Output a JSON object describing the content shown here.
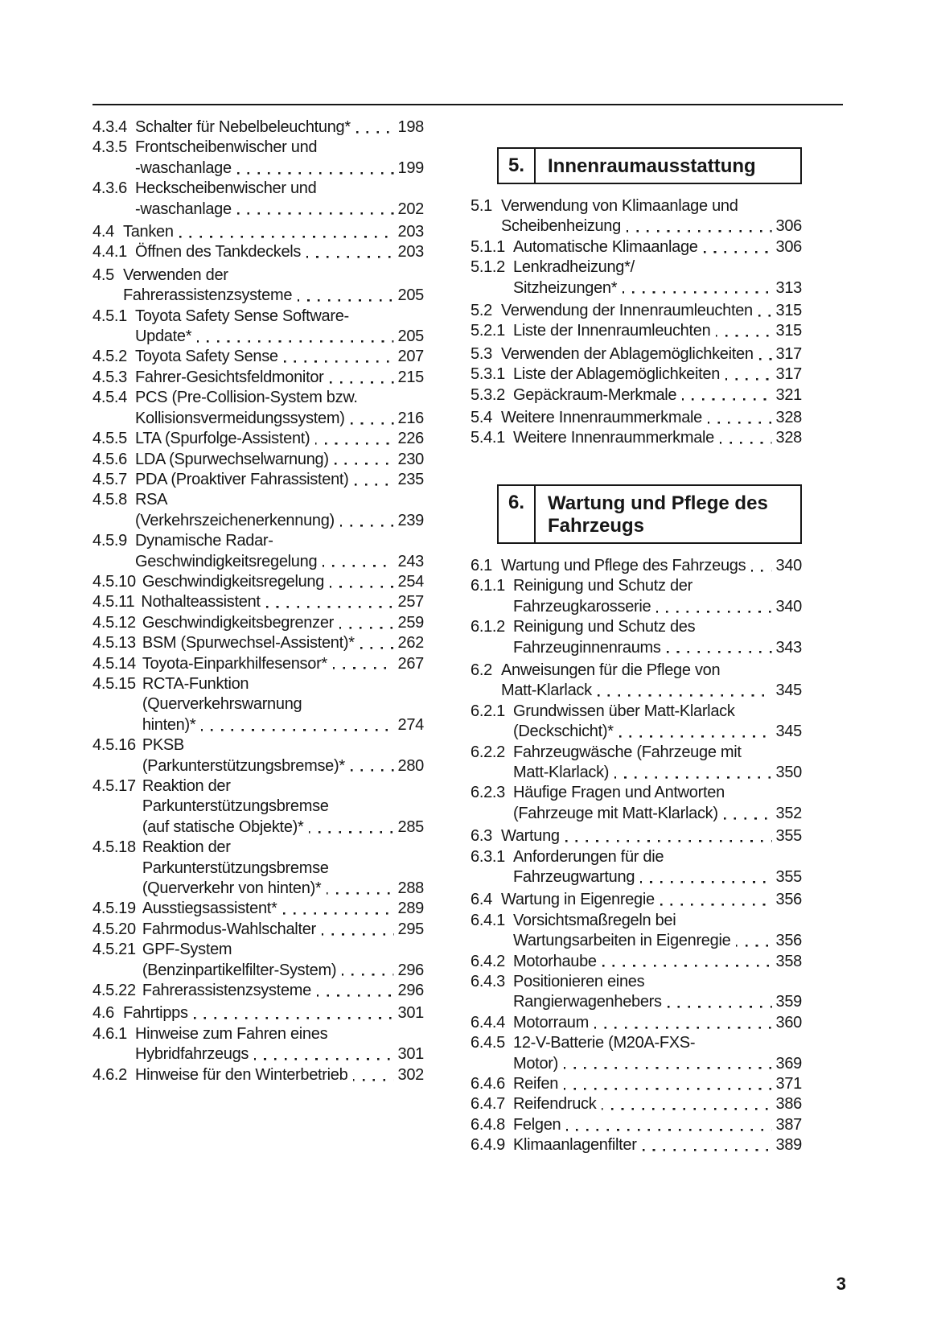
{
  "document": {
    "ink_color": "#161616",
    "footer_page_number": "3"
  },
  "left_column": {
    "entries": [
      {
        "level": 3,
        "num": "4.3.4",
        "lines": [
          "Schalter für Nebelbeleuchtung*"
        ],
        "page": "198"
      },
      {
        "level": 3,
        "num": "4.3.5",
        "lines": [
          "Frontscheibenwischer und",
          "-waschanlage"
        ],
        "page": "199"
      },
      {
        "level": 3,
        "num": "4.3.6",
        "lines": [
          "Heckscheibenwischer und",
          "-waschanlage"
        ],
        "page": "202"
      },
      {
        "level": 2,
        "num": "4.4",
        "lines": [
          "Tanken"
        ],
        "page": "203"
      },
      {
        "level": 3,
        "num": "4.4.1",
        "lines": [
          "Öffnen des Tankdeckels"
        ],
        "page": "203"
      },
      {
        "level": 2,
        "num": "4.5",
        "lines": [
          "Verwenden der",
          "Fahrerassistenzsysteme"
        ],
        "page": "205"
      },
      {
        "level": 3,
        "num": "4.5.1",
        "lines": [
          "Toyota Safety Sense Software-",
          "Update*"
        ],
        "page": "205"
      },
      {
        "level": 3,
        "num": "4.5.2",
        "lines": [
          "Toyota Safety Sense"
        ],
        "page": "207"
      },
      {
        "level": 3,
        "num": "4.5.3",
        "lines": [
          "Fahrer-Gesichtsfeldmonitor"
        ],
        "page": "215"
      },
      {
        "level": 3,
        "num": "4.5.4",
        "lines": [
          "PCS (Pre-Collision-System bzw.",
          "Kollisionsvermeidungssystem)"
        ],
        "page": "216"
      },
      {
        "level": 3,
        "num": "4.5.5",
        "lines": [
          "LTA (Spurfolge-Assistent)"
        ],
        "page": "226"
      },
      {
        "level": 3,
        "num": "4.5.6",
        "lines": [
          "LDA (Spurwechselwarnung)"
        ],
        "page": "230"
      },
      {
        "level": 3,
        "num": "4.5.7",
        "lines": [
          "PDA (Proaktiver Fahrassistent)"
        ],
        "page": "235"
      },
      {
        "level": 3,
        "num": "4.5.8",
        "lines": [
          "RSA",
          "(Verkehrszeichenerkennung)"
        ],
        "page": "239"
      },
      {
        "level": 3,
        "num": "4.5.9",
        "lines": [
          "Dynamische Radar-",
          "Geschwindigkeitsregelung"
        ],
        "page": "243"
      },
      {
        "level": 3,
        "num": "4.5.10",
        "lines": [
          "Geschwindigkeitsregelung"
        ],
        "page": "254"
      },
      {
        "level": 3,
        "num": "4.5.11",
        "lines": [
          "Nothalteassistent"
        ],
        "page": "257"
      },
      {
        "level": 3,
        "num": "4.5.12",
        "lines": [
          "Geschwindigkeitsbegrenzer"
        ],
        "page": "259"
      },
      {
        "level": 3,
        "num": "4.5.13",
        "lines": [
          "BSM (Spurwechsel-Assistent)*"
        ],
        "page": "262"
      },
      {
        "level": 3,
        "num": "4.5.14",
        "lines": [
          "Toyota-Einparkhilfesensor*"
        ],
        "page": "267"
      },
      {
        "level": 3,
        "num": "4.5.15",
        "lines": [
          "RCTA-Funktion",
          "(Querverkehrswarnung",
          "hinten)*"
        ],
        "page": "274"
      },
      {
        "level": 3,
        "num": "4.5.16",
        "lines": [
          "PKSB",
          "(Parkunterstützungsbremse)*"
        ],
        "page": "280"
      },
      {
        "level": 3,
        "num": "4.5.17",
        "lines": [
          "Reaktion der",
          "Parkunterstützungsbremse",
          "(auf statische Objekte)*"
        ],
        "page": "285"
      },
      {
        "level": 3,
        "num": "4.5.18",
        "lines": [
          "Reaktion der",
          "Parkunterstützungsbremse",
          "(Querverkehr von hinten)*"
        ],
        "page": "288"
      },
      {
        "level": 3,
        "num": "4.5.19",
        "lines": [
          "Ausstiegsassistent*"
        ],
        "page": "289"
      },
      {
        "level": 3,
        "num": "4.5.20",
        "lines": [
          "Fahrmodus-Wahlschalter"
        ],
        "page": "295"
      },
      {
        "level": 3,
        "num": "4.5.21",
        "lines": [
          "GPF-System",
          "(Benzinpartikelfilter-System)"
        ],
        "page": "296"
      },
      {
        "level": 3,
        "num": "4.5.22",
        "lines": [
          "Fahrerassistenzsysteme"
        ],
        "page": "296"
      },
      {
        "level": 2,
        "num": "4.6",
        "lines": [
          "Fahrtipps"
        ],
        "page": "301"
      },
      {
        "level": 3,
        "num": "4.6.1",
        "lines": [
          "Hinweise zum Fahren eines",
          "Hybridfahrzeugs"
        ],
        "page": "301"
      },
      {
        "level": 3,
        "num": "4.6.2",
        "lines": [
          "Hinweise für den Winterbetrieb"
        ],
        "page": "302"
      }
    ]
  },
  "right_column": {
    "blocks": [
      {
        "kind": "chapter",
        "num": "5.",
        "title_lines": [
          "Innenraumausstattung"
        ]
      },
      {
        "kind": "entry",
        "level": 2,
        "num": "5.1",
        "lines": [
          "Verwendung von Klimaanlage und",
          "Scheibenheizung"
        ],
        "page": "306"
      },
      {
        "kind": "entry",
        "level": 3,
        "num": "5.1.1",
        "lines": [
          "Automatische Klimaanlage"
        ],
        "page": "306"
      },
      {
        "kind": "entry",
        "level": 3,
        "num": "5.1.2",
        "lines": [
          "Lenkradheizung*/",
          "Sitzheizungen*"
        ],
        "page": "313"
      },
      {
        "kind": "entry",
        "level": 2,
        "num": "5.2",
        "lines": [
          "Verwendung der Innenraumleuchten"
        ],
        "page": "315"
      },
      {
        "kind": "entry",
        "level": 3,
        "num": "5.2.1",
        "lines": [
          "Liste der Innenraumleuchten"
        ],
        "page": "315"
      },
      {
        "kind": "entry",
        "level": 2,
        "num": "5.3",
        "lines": [
          "Verwenden der Ablagemöglichkeiten"
        ],
        "page": "317"
      },
      {
        "kind": "entry",
        "level": 3,
        "num": "5.3.1",
        "lines": [
          "Liste der Ablagemöglichkeiten"
        ],
        "page": "317"
      },
      {
        "kind": "entry",
        "level": 3,
        "num": "5.3.2",
        "lines": [
          "Gepäckraum-Merkmale"
        ],
        "page": "321"
      },
      {
        "kind": "entry",
        "level": 2,
        "num": "5.4",
        "lines": [
          "Weitere Innenraummerkmale"
        ],
        "page": "328"
      },
      {
        "kind": "entry",
        "level": 3,
        "num": "5.4.1",
        "lines": [
          "Weitere Innenraummerkmale"
        ],
        "page": "328"
      },
      {
        "kind": "chapter",
        "num": "6.",
        "title_lines": [
          "Wartung und Pflege des",
          "Fahrzeugs"
        ]
      },
      {
        "kind": "entry",
        "level": 2,
        "num": "6.1",
        "lines": [
          "Wartung und Pflege des Fahrzeugs"
        ],
        "page": "340"
      },
      {
        "kind": "entry",
        "level": 3,
        "num": "6.1.1",
        "lines": [
          "Reinigung und Schutz der",
          "Fahrzeugkarosserie"
        ],
        "page": "340"
      },
      {
        "kind": "entry",
        "level": 3,
        "num": "6.1.2",
        "lines": [
          "Reinigung und Schutz des",
          "Fahrzeuginnenraums"
        ],
        "page": "343"
      },
      {
        "kind": "entry",
        "level": 2,
        "num": "6.2",
        "lines": [
          "Anweisungen für die Pflege von",
          "Matt-Klarlack"
        ],
        "page": "345"
      },
      {
        "kind": "entry",
        "level": 3,
        "num": "6.2.1",
        "lines": [
          "Grundwissen über Matt-Klarlack",
          "(Deckschicht)*"
        ],
        "page": "345"
      },
      {
        "kind": "entry",
        "level": 3,
        "num": "6.2.2",
        "lines": [
          "Fahrzeugwäsche (Fahrzeuge mit",
          "Matt-Klarlack)"
        ],
        "page": "350"
      },
      {
        "kind": "entry",
        "level": 3,
        "num": "6.2.3",
        "lines": [
          "Häufige Fragen und Antworten",
          "(Fahrzeuge mit Matt-Klarlack)"
        ],
        "page": "352"
      },
      {
        "kind": "entry",
        "level": 2,
        "num": "6.3",
        "lines": [
          "Wartung"
        ],
        "page": "355"
      },
      {
        "kind": "entry",
        "level": 3,
        "num": "6.3.1",
        "lines": [
          "Anforderungen für die",
          "Fahrzeugwartung"
        ],
        "page": "355"
      },
      {
        "kind": "entry",
        "level": 2,
        "num": "6.4",
        "lines": [
          "Wartung in Eigenregie"
        ],
        "page": "356"
      },
      {
        "kind": "entry",
        "level": 3,
        "num": "6.4.1",
        "lines": [
          "Vorsichtsmaßregeln bei",
          "Wartungsarbeiten in Eigenregie"
        ],
        "page": "356"
      },
      {
        "kind": "entry",
        "level": 3,
        "num": "6.4.2",
        "lines": [
          "Motorhaube"
        ],
        "page": "358"
      },
      {
        "kind": "entry",
        "level": 3,
        "num": "6.4.3",
        "lines": [
          "Positionieren eines",
          "Rangierwagenhebers"
        ],
        "page": "359"
      },
      {
        "kind": "entry",
        "level": 3,
        "num": "6.4.4",
        "lines": [
          "Motorraum"
        ],
        "page": "360"
      },
      {
        "kind": "entry",
        "level": 3,
        "num": "6.4.5",
        "lines": [
          "12-V-Batterie (M20A-FXS-",
          "Motor)"
        ],
        "page": "369"
      },
      {
        "kind": "entry",
        "level": 3,
        "num": "6.4.6",
        "lines": [
          "Reifen"
        ],
        "page": "371"
      },
      {
        "kind": "entry",
        "level": 3,
        "num": "6.4.7",
        "lines": [
          "Reifendruck"
        ],
        "page": "386"
      },
      {
        "kind": "entry",
        "level": 3,
        "num": "6.4.8",
        "lines": [
          "Felgen"
        ],
        "page": "387"
      },
      {
        "kind": "entry",
        "level": 3,
        "num": "6.4.9",
        "lines": [
          "Klimaanlagenfilter"
        ],
        "page": "389"
      }
    ]
  }
}
